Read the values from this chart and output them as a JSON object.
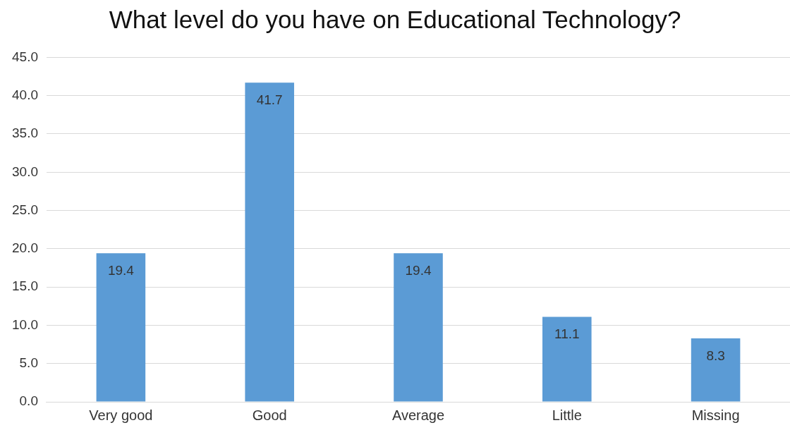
{
  "chart_data": {
    "type": "bar",
    "title": "What level do you have on Educational Technology?",
    "categories": [
      "Very good",
      "Good",
      "Average",
      "Little",
      "Missing"
    ],
    "values": [
      19.4,
      41.7,
      19.4,
      11.1,
      8.3
    ],
    "color": "#5b9bd5",
    "ylim": [
      0,
      45
    ],
    "yticks": [
      {
        "value": 0,
        "label": "0.0"
      },
      {
        "value": 5,
        "label": "5.0"
      },
      {
        "value": 10,
        "label": "10.0"
      },
      {
        "value": 15,
        "label": "15.0"
      },
      {
        "value": 20,
        "label": "20.0"
      },
      {
        "value": 25,
        "label": "25.0"
      },
      {
        "value": 30,
        "label": "30.0"
      },
      {
        "value": 35,
        "label": "35.0"
      },
      {
        "value": 40,
        "label": "40.0"
      },
      {
        "value": 45,
        "label": "45.0"
      }
    ],
    "grid": "y",
    "data_labels": true,
    "legend": false
  }
}
